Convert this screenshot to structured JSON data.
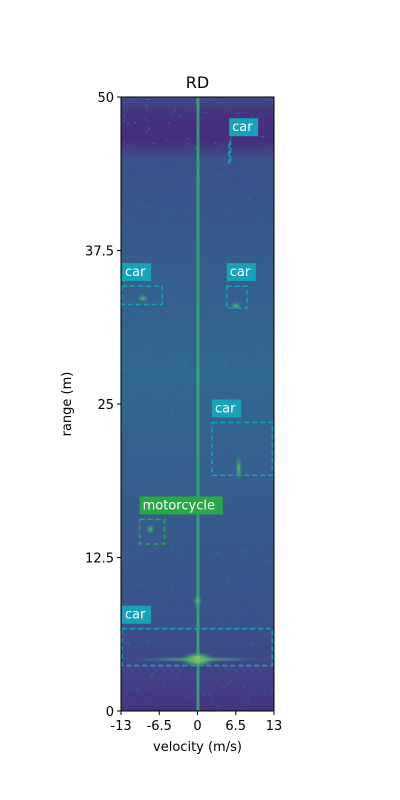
{
  "chart_data": {
    "type": "heatmap",
    "title": "RD",
    "xlabel": "velocity (m/s)",
    "ylabel": "range (m)",
    "xlim": [
      -13,
      13
    ],
    "ylim": [
      0,
      50
    ],
    "xticks": [
      {
        "value": -13,
        "label": "-13"
      },
      {
        "value": -6.5,
        "label": "-6.5"
      },
      {
        "value": 0,
        "label": "0"
      },
      {
        "value": 6.5,
        "label": "6.5"
      },
      {
        "value": 13,
        "label": "13"
      }
    ],
    "yticks": [
      {
        "value": 0,
        "label": "0"
      },
      {
        "value": 12.5,
        "label": "12.5"
      },
      {
        "value": 25,
        "label": "25"
      },
      {
        "value": 37.5,
        "label": "37.5"
      },
      {
        "value": 50,
        "label": "50"
      }
    ],
    "colormap": "viridis",
    "colors": {
      "car": "#17a2b8",
      "motorcycle": "#28a745",
      "background_low": "#3b518b",
      "background_high": "#2c728e",
      "hot": "#fde725"
    },
    "detections": [
      {
        "label": "car",
        "velocity": [
          5.2,
          5.6
        ],
        "range": [
          44.6,
          46.4
        ]
      },
      {
        "label": "car",
        "velocity": [
          -13,
          -6.0
        ],
        "range": [
          33.1,
          34.6
        ]
      },
      {
        "label": "car",
        "velocity": [
          4.8,
          8.4
        ],
        "range": [
          32.8,
          34.6
        ]
      },
      {
        "label": "car",
        "velocity": [
          2.3,
          12.7
        ],
        "range": [
          19.2,
          23.5
        ]
      },
      {
        "label": "motorcycle",
        "velocity": [
          -10.0,
          -5.6
        ],
        "range": [
          13.6,
          15.6
        ]
      },
      {
        "label": "car",
        "velocity": [
          -13,
          12.7
        ],
        "range": [
          3.7,
          6.7
        ]
      }
    ]
  }
}
